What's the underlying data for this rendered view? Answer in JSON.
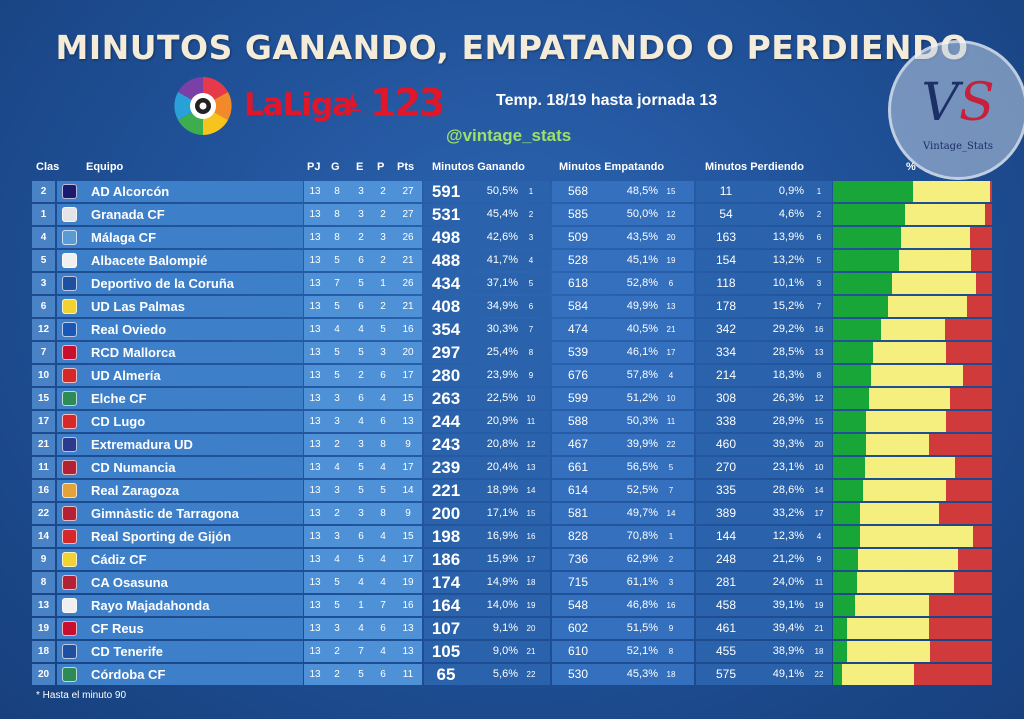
{
  "title": "MINUTOS GANANDO, EMPATANDO O PERDIENDO",
  "brand": {
    "laliga": "LaLiga",
    "number": "123",
    "ball_icon": "laliga-ball-icon",
    "flame_icon": "santander-flame-icon"
  },
  "season": "Temp. 18/19 hasta jornada 13",
  "handle": "@vintage_stats",
  "watermark": {
    "letters_v": "V",
    "letters_s": "S",
    "text": "Vintage_Stats"
  },
  "headers": {
    "clas": "Clas",
    "equipo": "Equipo",
    "pj": "PJ",
    "g": "G",
    "e": "E",
    "p": "P",
    "pts": "Pts",
    "ganando": "Minutos Ganando",
    "empatando": "Minutos Empatando",
    "perdiendo": "Minutos Perdiendo",
    "pct": "%"
  },
  "colors": {
    "win": "#17a637",
    "draw": "#f4ef7e",
    "lose": "#d03a3a"
  },
  "footnote": "* Hasta el minuto 90",
  "rows": [
    {
      "pos": "2",
      "team": "AD Alcorcón",
      "pj": "13",
      "g": "8",
      "e": "3",
      "p": "2",
      "pts": "27",
      "mw": "591",
      "pw": "50,5%",
      "rw": "1",
      "md": "568",
      "pd": "48,5%",
      "rd": "15",
      "ml": "11",
      "pl": "0,9%",
      "rl": "1",
      "fw": 0.505,
      "fd": 0.485,
      "crest": "#1a1a6e"
    },
    {
      "pos": "1",
      "team": "Granada CF",
      "pj": "13",
      "g": "8",
      "e": "3",
      "p": "2",
      "pts": "27",
      "mw": "531",
      "pw": "45,4%",
      "rw": "2",
      "md": "585",
      "pd": "50,0%",
      "rd": "12",
      "ml": "54",
      "pl": "4,6%",
      "rl": "2",
      "fw": 0.454,
      "fd": 0.5,
      "crest": "#e5e5e5"
    },
    {
      "pos": "4",
      "team": "Málaga CF",
      "pj": "13",
      "g": "8",
      "e": "2",
      "p": "3",
      "pts": "26",
      "mw": "498",
      "pw": "42,6%",
      "rw": "3",
      "md": "509",
      "pd": "43,5%",
      "rd": "20",
      "ml": "163",
      "pl": "13,9%",
      "rl": "6",
      "fw": 0.426,
      "fd": 0.435,
      "crest": "#5b9bd5"
    },
    {
      "pos": "5",
      "team": "Albacete Balompié",
      "pj": "13",
      "g": "5",
      "e": "6",
      "p": "2",
      "pts": "21",
      "mw": "488",
      "pw": "41,7%",
      "rw": "4",
      "md": "528",
      "pd": "45,1%",
      "rd": "19",
      "ml": "154",
      "pl": "13,2%",
      "rl": "5",
      "fw": 0.417,
      "fd": 0.451,
      "crest": "#f0f0f0"
    },
    {
      "pos": "3",
      "team": "Deportivo de la Coruña",
      "pj": "13",
      "g": "7",
      "e": "5",
      "p": "1",
      "pts": "26",
      "mw": "434",
      "pw": "37,1%",
      "rw": "5",
      "md": "618",
      "pd": "52,8%",
      "rd": "6",
      "ml": "118",
      "pl": "10,1%",
      "rl": "3",
      "fw": 0.371,
      "fd": 0.528,
      "crest": "#1f4fa0"
    },
    {
      "pos": "6",
      "team": "UD Las Palmas",
      "pj": "13",
      "g": "5",
      "e": "6",
      "p": "2",
      "pts": "21",
      "mw": "408",
      "pw": "34,9%",
      "rw": "6",
      "md": "584",
      "pd": "49,9%",
      "rd": "13",
      "ml": "178",
      "pl": "15,2%",
      "rl": "7",
      "fw": 0.349,
      "fd": 0.499,
      "crest": "#f2d233"
    },
    {
      "pos": "12",
      "team": "Real Oviedo",
      "pj": "13",
      "g": "4",
      "e": "4",
      "p": "5",
      "pts": "16",
      "mw": "354",
      "pw": "30,3%",
      "rw": "7",
      "md": "474",
      "pd": "40,5%",
      "rd": "21",
      "ml": "342",
      "pl": "29,2%",
      "rl": "16",
      "fw": 0.303,
      "fd": 0.405,
      "crest": "#1a58b8"
    },
    {
      "pos": "7",
      "team": "RCD Mallorca",
      "pj": "13",
      "g": "5",
      "e": "5",
      "p": "3",
      "pts": "20",
      "mw": "297",
      "pw": "25,4%",
      "rw": "8",
      "md": "539",
      "pd": "46,1%",
      "rd": "17",
      "ml": "334",
      "pl": "28,5%",
      "rl": "13",
      "fw": 0.254,
      "fd": 0.461,
      "crest": "#c8102e"
    },
    {
      "pos": "10",
      "team": "UD Almería",
      "pj": "13",
      "g": "5",
      "e": "2",
      "p": "6",
      "pts": "17",
      "mw": "280",
      "pw": "23,9%",
      "rw": "9",
      "md": "676",
      "pd": "57,8%",
      "rd": "4",
      "ml": "214",
      "pl": "18,3%",
      "rl": "8",
      "fw": 0.239,
      "fd": 0.578,
      "crest": "#d62828"
    },
    {
      "pos": "15",
      "team": "Elche CF",
      "pj": "13",
      "g": "3",
      "e": "6",
      "p": "4",
      "pts": "15",
      "mw": "263",
      "pw": "22,5%",
      "rw": "10",
      "md": "599",
      "pd": "51,2%",
      "rd": "10",
      "ml": "308",
      "pl": "26,3%",
      "rl": "12",
      "fw": 0.225,
      "fd": 0.512,
      "crest": "#2e8b57"
    },
    {
      "pos": "17",
      "team": "CD Lugo",
      "pj": "13",
      "g": "3",
      "e": "4",
      "p": "6",
      "pts": "13",
      "mw": "244",
      "pw": "20,9%",
      "rw": "11",
      "md": "588",
      "pd": "50,3%",
      "rd": "11",
      "ml": "338",
      "pl": "28,9%",
      "rl": "15",
      "fw": 0.209,
      "fd": 0.503,
      "crest": "#d62828"
    },
    {
      "pos": "21",
      "team": "Extremadura UD",
      "pj": "13",
      "g": "2",
      "e": "3",
      "p": "8",
      "pts": "9",
      "mw": "243",
      "pw": "20,8%",
      "rw": "12",
      "md": "467",
      "pd": "39,9%",
      "rd": "22",
      "ml": "460",
      "pl": "39,3%",
      "rl": "20",
      "fw": 0.208,
      "fd": 0.399,
      "crest": "#2b3a8c"
    },
    {
      "pos": "11",
      "team": "CD Numancia",
      "pj": "13",
      "g": "4",
      "e": "5",
      "p": "4",
      "pts": "17",
      "mw": "239",
      "pw": "20,4%",
      "rw": "13",
      "md": "661",
      "pd": "56,5%",
      "rd": "5",
      "ml": "270",
      "pl": "23,1%",
      "rl": "10",
      "fw": 0.204,
      "fd": 0.565,
      "crest": "#b22234"
    },
    {
      "pos": "16",
      "team": "Real Zaragoza",
      "pj": "13",
      "g": "3",
      "e": "5",
      "p": "5",
      "pts": "14",
      "mw": "221",
      "pw": "18,9%",
      "rw": "14",
      "md": "614",
      "pd": "52,5%",
      "rd": "7",
      "ml": "335",
      "pl": "28,6%",
      "rl": "14",
      "fw": 0.189,
      "fd": 0.525,
      "crest": "#e3a33a"
    },
    {
      "pos": "22",
      "team": "Gimnàstic de Tarragona",
      "pj": "13",
      "g": "2",
      "e": "3",
      "p": "8",
      "pts": "9",
      "mw": "200",
      "pw": "17,1%",
      "rw": "15",
      "md": "581",
      "pd": "49,7%",
      "rd": "14",
      "ml": "389",
      "pl": "33,2%",
      "rl": "17",
      "fw": 0.171,
      "fd": 0.497,
      "crest": "#b22234"
    },
    {
      "pos": "14",
      "team": "Real Sporting de Gijón",
      "pj": "13",
      "g": "3",
      "e": "6",
      "p": "4",
      "pts": "15",
      "mw": "198",
      "pw": "16,9%",
      "rw": "16",
      "md": "828",
      "pd": "70,8%",
      "rd": "1",
      "ml": "144",
      "pl": "12,3%",
      "rl": "4",
      "fw": 0.169,
      "fd": 0.708,
      "crest": "#d62828"
    },
    {
      "pos": "9",
      "team": "Cádiz CF",
      "pj": "13",
      "g": "4",
      "e": "5",
      "p": "4",
      "pts": "17",
      "mw": "186",
      "pw": "15,9%",
      "rw": "17",
      "md": "736",
      "pd": "62,9%",
      "rd": "2",
      "ml": "248",
      "pl": "21,2%",
      "rl": "9",
      "fw": 0.159,
      "fd": 0.629,
      "crest": "#f2d233"
    },
    {
      "pos": "8",
      "team": "CA Osasuna",
      "pj": "13",
      "g": "5",
      "e": "4",
      "p": "4",
      "pts": "19",
      "mw": "174",
      "pw": "14,9%",
      "rw": "18",
      "md": "715",
      "pd": "61,1%",
      "rd": "3",
      "ml": "281",
      "pl": "24,0%",
      "rl": "11",
      "fw": 0.149,
      "fd": 0.611,
      "crest": "#b22234"
    },
    {
      "pos": "13",
      "team": "Rayo Majadahonda",
      "pj": "13",
      "g": "5",
      "e": "1",
      "p": "7",
      "pts": "16",
      "mw": "164",
      "pw": "14,0%",
      "rw": "19",
      "md": "548",
      "pd": "46,8%",
      "rd": "16",
      "ml": "458",
      "pl": "39,1%",
      "rl": "19",
      "fw": 0.14,
      "fd": 0.468,
      "crest": "#f0f0f0"
    },
    {
      "pos": "19",
      "team": "CF Reus",
      "pj": "13",
      "g": "3",
      "e": "4",
      "p": "6",
      "pts": "13",
      "mw": "107",
      "pw": "9,1%",
      "rw": "20",
      "md": "602",
      "pd": "51,5%",
      "rd": "9",
      "ml": "461",
      "pl": "39,4%",
      "rl": "21",
      "fw": 0.091,
      "fd": 0.515,
      "crest": "#c8102e"
    },
    {
      "pos": "18",
      "team": "CD Tenerife",
      "pj": "13",
      "g": "2",
      "e": "7",
      "p": "4",
      "pts": "13",
      "mw": "105",
      "pw": "9,0%",
      "rw": "21",
      "md": "610",
      "pd": "52,1%",
      "rd": "8",
      "ml": "455",
      "pl": "38,9%",
      "rl": "18",
      "fw": 0.09,
      "fd": 0.521,
      "crest": "#1f4fa0"
    },
    {
      "pos": "20",
      "team": "Córdoba CF",
      "pj": "13",
      "g": "2",
      "e": "5",
      "p": "6",
      "pts": "11",
      "mw": "65",
      "pw": "5,6%",
      "rw": "22",
      "md": "530",
      "pd": "45,3%",
      "rd": "18",
      "ml": "575",
      "pl": "49,1%",
      "rl": "22",
      "fw": 0.056,
      "fd": 0.453,
      "crest": "#2e8b57"
    }
  ]
}
